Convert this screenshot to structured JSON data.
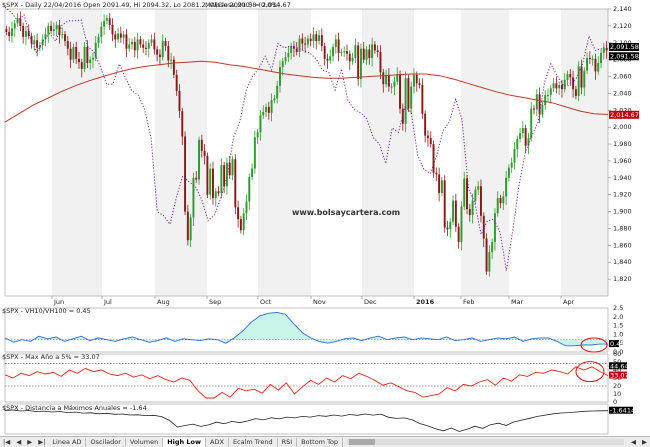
{
  "chart_data": [
    {
      "type": "candlestick",
      "title": "$SPX - Daily 22/04/2016 Open 2091.49, Hi 2094.32, Lo 2081.2, Close 2091.58 (0.0%)",
      "overlay_label": "MA(Close,200) = 2,014.67",
      "watermark": "www.bolsaycartera.com",
      "x_labels": [
        "Jun",
        "Jul",
        "Aug",
        "Sep",
        "Oct",
        "Nov",
        "Dec",
        "2016",
        "Feb",
        "Mar",
        "Apr"
      ],
      "ylim": [
        1800,
        2140
      ],
      "y_ticks": [
        2140,
        2120,
        2100,
        2080,
        2060,
        2040,
        2020,
        2000,
        1980,
        1960,
        1940,
        1920,
        1900,
        1880,
        1860,
        1840,
        1820
      ],
      "price_tags": [
        "2,091.58",
        "2,091.58",
        "2,014.67"
      ],
      "close": [
        2113,
        2108,
        2117,
        2123,
        2129,
        2120,
        2107,
        2114,
        2108,
        2099,
        2103,
        2094,
        2097,
        2104,
        2110,
        2120,
        2114,
        2116,
        2121,
        2109,
        2110,
        2102,
        2093,
        2080,
        2095,
        2081,
        2077,
        2069,
        2095,
        2076,
        2080,
        2082,
        2100,
        2107,
        2119,
        2126,
        2129,
        2121,
        2110,
        2104,
        2111,
        2106,
        2110,
        2093,
        2098,
        2101,
        2091,
        2104,
        2098,
        2094,
        2093,
        2100,
        2104,
        2092,
        2086,
        2083,
        2102,
        2096,
        2079,
        2080,
        2062,
        2043,
        2019,
        1989,
        1900,
        1866,
        1893,
        1940,
        1938,
        1985,
        1972,
        1966,
        1920,
        1951,
        1916,
        1924,
        1922,
        1955,
        1930,
        1958,
        1943,
        1962,
        1905,
        1891,
        1878,
        1898,
        1912,
        1941,
        1951,
        1988,
        1994,
        2014,
        2018,
        2024,
        2017,
        2032,
        2034,
        2049,
        2071,
        2078,
        2083,
        2088,
        2096,
        2093,
        2089,
        2105,
        2099,
        2098,
        2105,
        2102,
        2110,
        2102,
        2109,
        2096,
        2081,
        2079,
        2084,
        2095,
        2104,
        2088,
        2089,
        2090,
        2087,
        2078,
        2082,
        2097,
        2057,
        2093,
        2080,
        2092,
        2082,
        2098,
        2091,
        2089,
        2065,
        2051,
        2062,
        2048,
        2048,
        2054,
        2063,
        2022,
        2004,
        2058,
        2022,
        2048,
        2062,
        2052,
        2050,
        2016,
        1990,
        1987,
        1980,
        1946,
        1944,
        1922,
        1937,
        1881,
        1879,
        1888,
        1913,
        1882,
        1864,
        1906,
        1939,
        1903,
        1896,
        1913,
        1926,
        1930,
        1895,
        1868,
        1829,
        1852,
        1864,
        1898,
        1916,
        1910,
        1918,
        1940,
        1952,
        1958,
        1974,
        1986,
        1993,
        1999,
        1978,
        1987,
        2022,
        2021,
        2039,
        2015,
        2026,
        2038,
        2038,
        2046,
        2052,
        2046,
        2050,
        2045,
        2056,
        2063,
        2059,
        2045,
        2037,
        2072,
        2047,
        2067,
        2082,
        2081,
        2081,
        2066,
        2076,
        2088,
        2094,
        2091
      ],
      "ma200": [
        2006,
        2016,
        2026,
        2034,
        2042,
        2049,
        2055,
        2060,
        2065,
        2069,
        2072,
        2074,
        2076,
        2077,
        2078,
        2077,
        2074,
        2072,
        2069,
        2066,
        2063,
        2061,
        2059,
        2058,
        2058,
        2059,
        2060,
        2061,
        2062,
        2063,
        2063,
        2061,
        2057,
        2052,
        2047,
        2042,
        2038,
        2035,
        2032,
        2029,
        2024,
        2019,
        2016,
        2015
      ],
      "ma_line": [
        2142,
        2136,
        2126,
        2133,
        2106,
        2088,
        2102,
        2111,
        2102,
        2121,
        2126,
        2126,
        2127,
        2096,
        2089,
        2072,
        2051,
        2051,
        2075,
        2058,
        2043,
        2038,
        2021,
        1988,
        1900,
        1895,
        1885,
        1917,
        1942,
        1935,
        1930,
        1914,
        1889,
        1896,
        1916,
        1942,
        1988,
        2007,
        2044,
        2060,
        2070,
        2084,
        2068,
        2099,
        2094,
        2096,
        2094,
        2091,
        2088,
        2081,
        2068,
        2065,
        2044,
        2069,
        2032,
        2021,
        2017,
        2010,
        1988,
        1980,
        1957,
        1999,
        1994,
        2024,
        2018,
        1967,
        1950,
        1945,
        1966,
        1996,
        2006,
        2033,
        2009,
        1928,
        1911,
        1873,
        1889,
        1891,
        1875,
        1830,
        1878,
        1932,
        1971,
        1990,
        2006,
        2053,
        2075,
        2061,
        2049,
        2049,
        2058,
        2075,
        2108,
        2091,
        2093,
        2098
      ]
    },
    {
      "type": "area",
      "title": "$SPX - VH10/VH100 = 0.45",
      "ylim": [
        0,
        2.5
      ],
      "y_ticks": [
        "2.5",
        "2.0",
        "1.5",
        "1.0",
        "0.5",
        "0.0"
      ],
      "tag": "0.45",
      "values": [
        0.8,
        0.55,
        0.7,
        0.6,
        0.9,
        0.75,
        0.85,
        0.6,
        0.75,
        0.9,
        0.65,
        0.8,
        0.7,
        0.6,
        0.75,
        0.85,
        0.7,
        0.55,
        0.65,
        0.8,
        0.6,
        0.75,
        0.7,
        0.65,
        0.75,
        0.7,
        0.5,
        0.8,
        1.2,
        1.7,
        2.05,
        2.2,
        2.25,
        2.15,
        1.6,
        1.1,
        0.8,
        0.6,
        0.5,
        0.6,
        0.75,
        0.8,
        0.65,
        0.8,
        0.9,
        0.7,
        0.8,
        0.85,
        0.7,
        0.8,
        0.75,
        0.7,
        0.85,
        0.65,
        0.7,
        0.8,
        0.6,
        0.7,
        0.8,
        0.75,
        0.85,
        0.6,
        0.75,
        0.8,
        0.8,
        0.6,
        0.35,
        0.35,
        0.4,
        0.4,
        0.45,
        0.45
      ]
    },
    {
      "type": "line",
      "title": "$SPX - Max Aňo a 5% = 33.07",
      "ylim": [
        0,
        60
      ],
      "y_ticks": [
        "60",
        "50",
        "40",
        "30",
        "20",
        "10",
        "0"
      ],
      "tags": [
        "44.64",
        "33.07"
      ],
      "values": [
        34,
        30,
        36,
        33,
        38,
        35,
        37,
        32,
        40,
        36,
        42,
        38,
        40,
        35,
        33,
        36,
        31,
        34,
        29,
        33,
        28,
        25,
        30,
        27,
        14,
        5,
        5,
        12,
        6,
        17,
        14,
        16,
        11,
        22,
        15,
        24,
        10,
        19,
        27,
        22,
        30,
        25,
        33,
        29,
        36,
        32,
        27,
        21,
        24,
        19,
        14,
        12,
        6,
        8,
        10,
        18,
        14,
        22,
        20,
        25,
        28,
        21,
        30,
        26,
        34,
        32,
        37,
        36,
        40,
        38,
        35,
        44,
        40,
        44,
        38,
        33
      ]
    },
    {
      "type": "line",
      "title": "$SPX - Distancia a Máximos Anuales = -1.64",
      "tag": "-1.6414",
      "values": [
        -1.6,
        -1.2,
        -1.8,
        -1.5,
        -2.2,
        -1.9,
        -2.4,
        -2.1,
        -2.8,
        -2.5,
        -3.1,
        -2.9,
        -3.5,
        -3.2,
        -3.8,
        -3.6,
        -4.2,
        -4.1,
        -4.6,
        -4.4,
        -5.2,
        -7.5,
        -11.5,
        -10.6,
        -9.7,
        -11.1,
        -10.2,
        -8.6,
        -9.5,
        -8.1,
        -8.9,
        -7.8,
        -6.4,
        -7.2,
        -5.9,
        -6.6,
        -5.5,
        -6.0,
        -5.1,
        -5.5,
        -4.6,
        -5.0,
        -4.2,
        -4.9,
        -3.9,
        -4.4,
        -3.6,
        -4.3,
        -3.7,
        -5.6,
        -6.3,
        -6.0,
        -7.2,
        -9.4,
        -10.8,
        -12.5,
        -13.8,
        -12.1,
        -14.2,
        -12.8,
        -11.0,
        -12.3,
        -10.1,
        -9.2,
        -10.5,
        -8.4,
        -7.3,
        -6.2,
        -5.1,
        -4.3,
        -3.5,
        -3.0,
        -2.8,
        -2.4,
        -2.0,
        -1.8,
        -1.7,
        -1.64
      ]
    }
  ],
  "tabs": [
    "Linea AD",
    "Oscilador",
    "Volumen",
    "High Low",
    "ADX",
    "Ecalm Trend",
    "RSI",
    "Bottom Top"
  ],
  "active_tab": "High Low",
  "colors": {
    "up": "#2e9b2e",
    "down": "#8b1a1a",
    "ma200": "#c0392b",
    "dotted": "#7a1fa2",
    "area": "#2a6fdb",
    "red_line": "#e0261b"
  }
}
